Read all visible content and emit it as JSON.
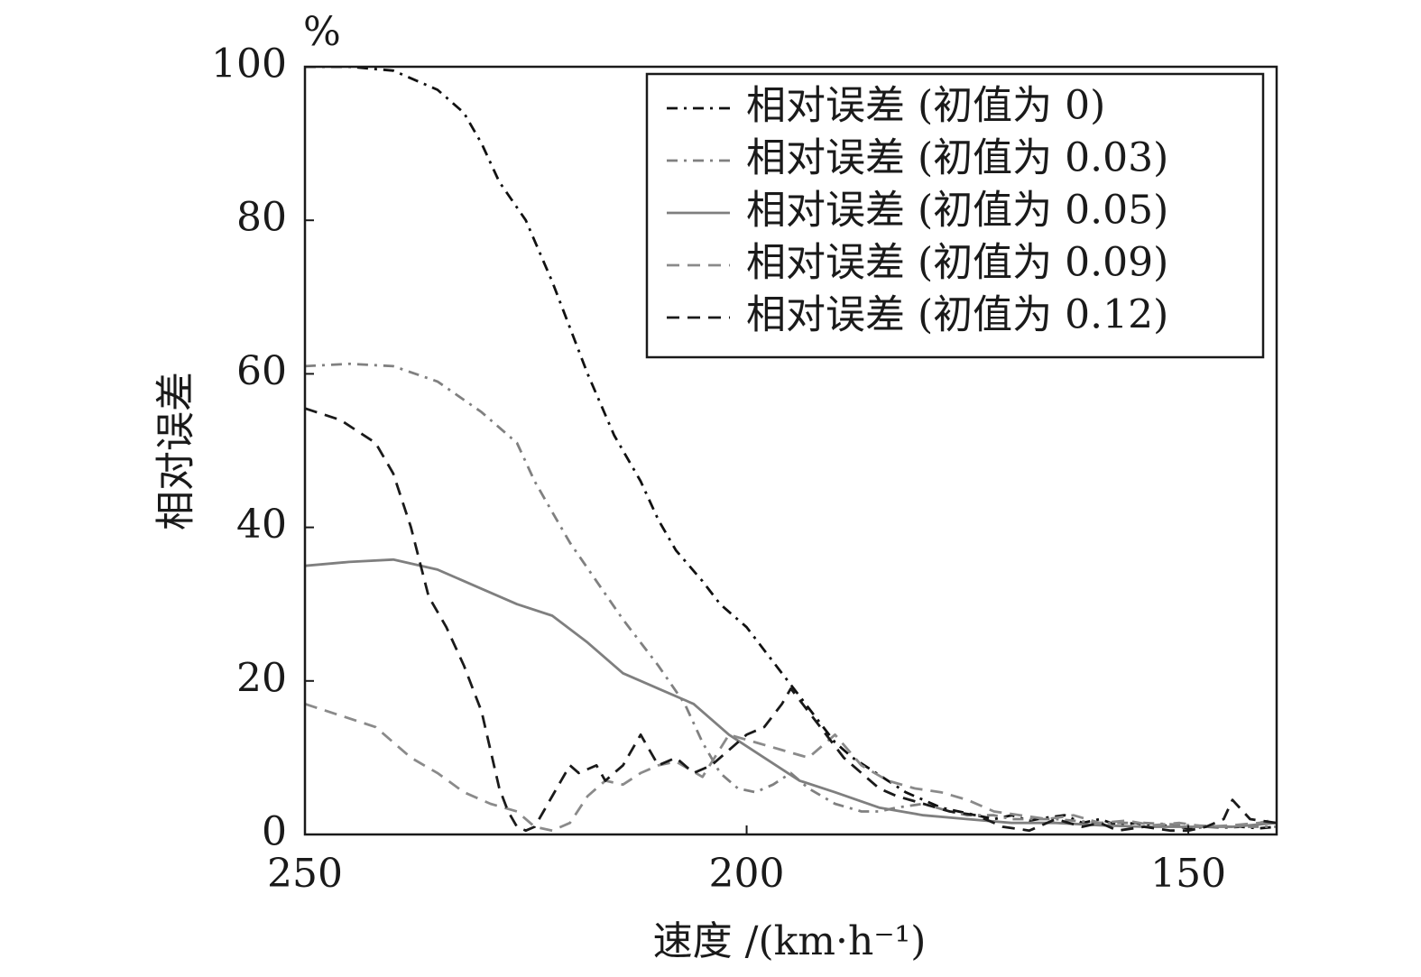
{
  "chart_data": {
    "type": "line",
    "xlabel": "速度 /(km·h⁻¹)",
    "ylabel": "相对误差",
    "yunit": "%",
    "xlim": [
      250,
      140
    ],
    "ylim": [
      0,
      100
    ],
    "x_reversed": true,
    "xticks": [
      250,
      200,
      150
    ],
    "yticks": [
      0,
      20,
      40,
      60,
      80,
      100
    ],
    "grid": false,
    "legend_position": "top-right",
    "series": [
      {
        "name": "相对误差 (初值为 0)",
        "color": "#111111",
        "dash": "dashdot",
        "x": [
          250,
          245,
          240,
          235,
          232,
          230,
          228,
          225,
          222,
          220,
          218,
          215,
          212,
          210,
          208,
          205,
          203,
          200,
          198,
          196,
          194,
          192,
          190,
          188,
          186,
          184,
          182,
          180,
          178,
          176,
          174,
          172,
          170,
          168,
          166,
          164,
          162,
          160,
          158,
          156,
          154,
          152,
          150,
          148,
          146,
          144,
          142,
          140
        ],
        "y": [
          100,
          100,
          99.5,
          97,
          94,
          90,
          85,
          80,
          72,
          66,
          60,
          52,
          46,
          41,
          37,
          33,
          30,
          27,
          24,
          21,
          18,
          15,
          12,
          10,
          8.5,
          7,
          5.5,
          4.5,
          3.5,
          3,
          2.5,
          2,
          2.5,
          1.8,
          2.2,
          2.5,
          1.5,
          2,
          1.2,
          1.5,
          1,
          1.2,
          0.8,
          1,
          0.9,
          1,
          0.8,
          1
        ]
      },
      {
        "name": "相对误差 (初值为 0.03)",
        "color": "#808080",
        "dash": "dashdot",
        "x": [
          250,
          245,
          240,
          235,
          230,
          226,
          224,
          222,
          220,
          217,
          214,
          210,
          207,
          205,
          203,
          201,
          199,
          197,
          195,
          193,
          190,
          187,
          185,
          183,
          180,
          177,
          175,
          172,
          170,
          165,
          160,
          155,
          150,
          145,
          140
        ],
        "y": [
          61,
          61.3,
          61,
          59,
          55,
          51,
          46,
          42,
          38,
          33,
          28,
          22,
          17,
          12,
          8,
          6,
          5.5,
          6.5,
          8,
          6,
          4,
          3,
          3,
          3.5,
          4,
          3,
          2.5,
          2.5,
          2,
          2,
          1.5,
          1.5,
          1.2,
          1,
          1
        ]
      },
      {
        "name": "相对误差 (初值为 0.05)",
        "color": "#7f7f7f",
        "dash": "solid",
        "x": [
          250,
          245,
          240,
          235,
          230,
          226,
          222,
          218,
          214,
          210,
          206,
          202,
          198,
          194,
          190,
          185,
          180,
          175,
          170,
          165,
          160,
          155,
          150,
          145,
          140
        ],
        "y": [
          35,
          35.5,
          35.8,
          34.5,
          32,
          30,
          28.5,
          25,
          21,
          19,
          17,
          13,
          10,
          7,
          5.5,
          3.5,
          2.5,
          2,
          1.5,
          1.5,
          1.2,
          1,
          1,
          1,
          1.5
        ]
      },
      {
        "name": "相对误差 (初值为 0.09)",
        "color": "#8a8a8a",
        "dash": "dashed",
        "x": [
          250,
          246,
          242,
          238,
          235,
          232,
          229,
          226,
          224,
          222,
          220,
          218,
          216,
          214,
          212,
          210,
          208,
          205,
          202,
          199,
          196,
          193,
          190,
          187,
          184,
          181,
          178,
          175,
          172,
          169,
          166,
          163,
          160,
          157,
          154,
          151,
          148,
          145,
          142,
          140
        ],
        "y": [
          17,
          15.5,
          14,
          10,
          8,
          5.5,
          4,
          3,
          1,
          0.5,
          1.5,
          5,
          7,
          6.5,
          8,
          9,
          9.5,
          7.5,
          13,
          12,
          11,
          10,
          13,
          9,
          7,
          6,
          5.5,
          4.5,
          3,
          2.5,
          2,
          2.5,
          1.5,
          1.8,
          1.2,
          1.5,
          1,
          1.2,
          1.5,
          2
        ]
      },
      {
        "name": "相对误差 (初值为 0.12)",
        "color": "#1a1a1a",
        "dash": "dashed",
        "x": [
          250,
          246,
          242,
          240,
          238,
          236,
          234,
          232,
          230,
          229,
          228,
          227,
          226,
          225,
          224,
          223,
          222,
          221,
          220,
          219,
          217,
          216,
          214,
          212,
          210,
          208,
          206,
          204,
          202,
          200,
          198,
          196,
          195,
          193,
          191,
          189,
          187,
          185,
          183,
          180,
          177,
          174,
          171,
          168,
          165,
          162,
          160,
          158,
          155,
          152,
          150,
          148,
          146,
          145,
          143,
          140
        ],
        "y": [
          55.5,
          54,
          51,
          47,
          40,
          31,
          27,
          22,
          16,
          11,
          6,
          3,
          1,
          0.5,
          1,
          3,
          5,
          7,
          9,
          8,
          9,
          7,
          9,
          13,
          9,
          10,
          8,
          9,
          11,
          13,
          14,
          17,
          19,
          16,
          13,
          10,
          8,
          6,
          5,
          4,
          3,
          2.5,
          1,
          0.5,
          2,
          1,
          1.5,
          0.5,
          1,
          0.5,
          0.5,
          1,
          2,
          4.5,
          2,
          1.5
        ]
      }
    ]
  }
}
